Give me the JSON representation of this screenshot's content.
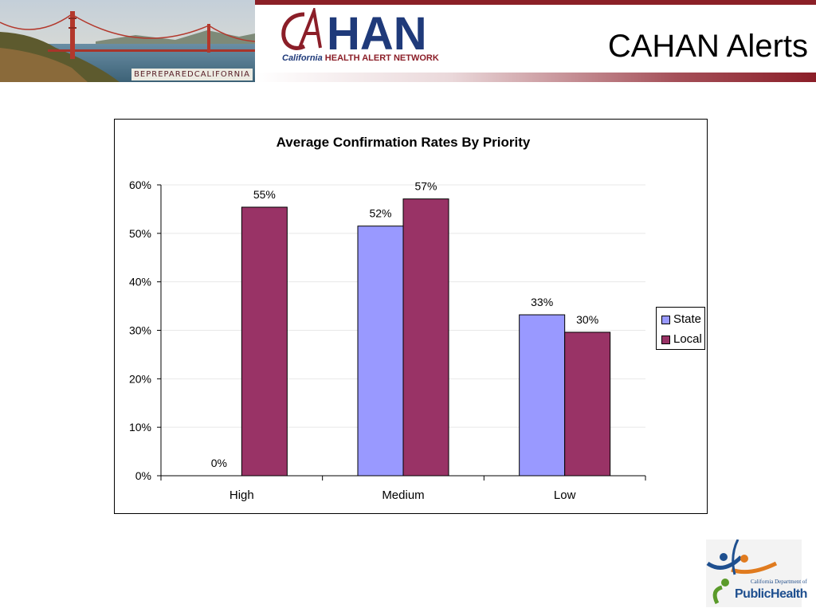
{
  "header": {
    "title": "CAHAN Alerts",
    "photo_banner_text": "BEPREPAREDCALIFORNIA",
    "logo_text": "CAHAN",
    "logo_subtitle_a": "California",
    "logo_subtitle_b": "HEALTH ALERT NETWORK"
  },
  "footer": {
    "dph_small_text": "California Department of",
    "dph_big_text": "PublicHealth"
  },
  "colors": {
    "state": "#9999ff",
    "local": "#993366",
    "brand_red": "#8b2027",
    "brand_blue": "#1f3a7a"
  },
  "chart_data": {
    "type": "bar",
    "title": "Average Confirmation Rates By Priority",
    "categories": [
      "High",
      "Medium",
      "Low"
    ],
    "series": [
      {
        "name": "State",
        "values": [
          0,
          51.5,
          33.2
        ],
        "labels": [
          "0%",
          "52%",
          "33%"
        ]
      },
      {
        "name": "Local",
        "values": [
          55.4,
          57.1,
          29.6
        ],
        "labels": [
          "55%",
          "57%",
          "30%"
        ]
      }
    ],
    "ylim": [
      0,
      60
    ],
    "yticks": [
      "0%",
      "10%",
      "20%",
      "30%",
      "40%",
      "50%",
      "60%"
    ],
    "xlabel": "",
    "ylabel": "",
    "grid": true,
    "legend": "right"
  }
}
